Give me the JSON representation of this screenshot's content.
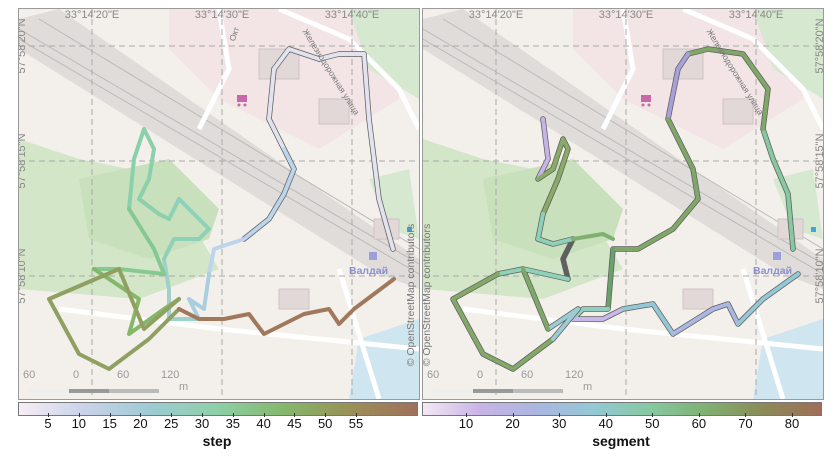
{
  "maps": [
    {
      "id": "left",
      "x_labels": [
        "33°14'20\"E",
        "33°14'30\"E",
        "33°14'40\"E"
      ],
      "y_labels": [
        "57°58'20\"N",
        "57°58'15\"N",
        "57°58'10\"N"
      ],
      "colorbar": {
        "title": "step",
        "ticks": [
          "5",
          "10",
          "15",
          "20",
          "25",
          "30",
          "35",
          "40",
          "45",
          "50",
          "55"
        ]
      }
    },
    {
      "id": "right",
      "x_labels": [
        "33°14'20\"E",
        "33°14'30\"E",
        "33°14'40\"E"
      ],
      "y_labels": [
        "57°58'20\"N",
        "57°58'15\"N",
        "57°58'10\"N"
      ],
      "colorbar": {
        "title": "segment",
        "ticks": [
          "10",
          "20",
          "30",
          "40",
          "50",
          "60",
          "70",
          "80"
        ]
      }
    }
  ],
  "attribution": "© OpenStreetMap contributors",
  "place_label": "Валдай",
  "street_labels": [
    "Железнодорожная улица",
    "Окт"
  ],
  "scale_ticks": [
    "60",
    "0",
    "60",
    "120"
  ],
  "scale_unit": "m",
  "icons": {
    "shop": "shopping-cart-icon",
    "station": "railway-station-icon"
  }
}
